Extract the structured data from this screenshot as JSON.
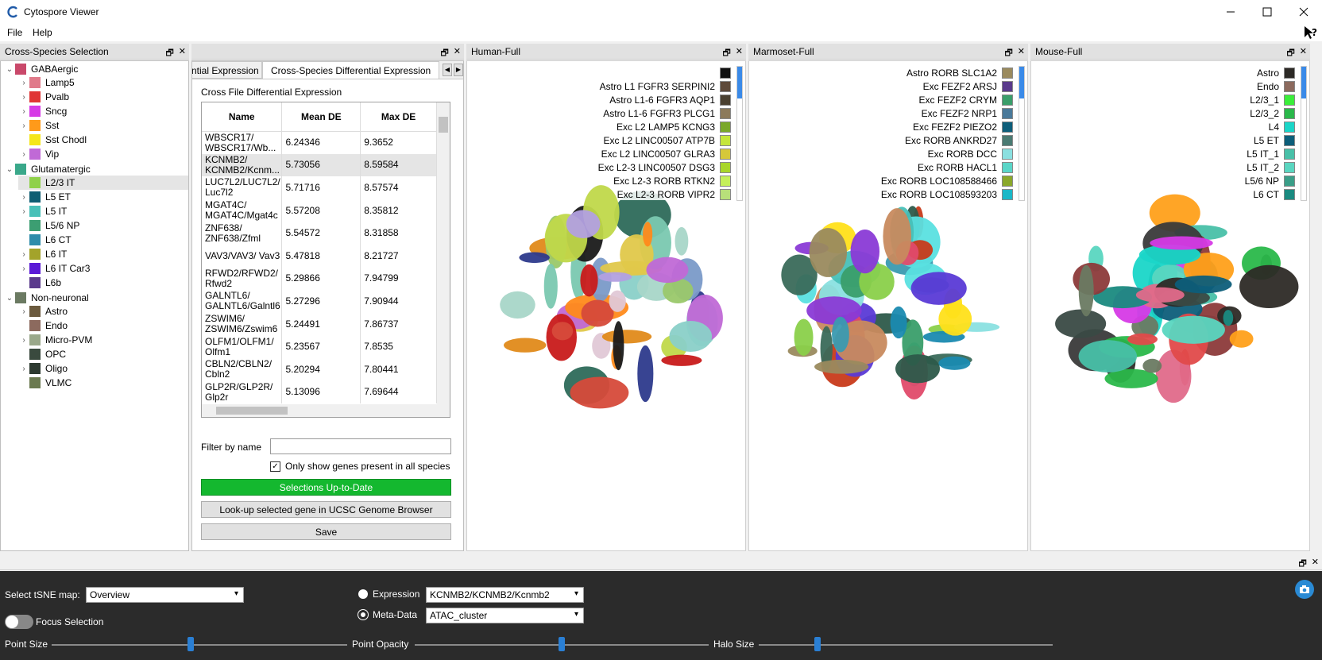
{
  "window": {
    "title": "Cytospore Viewer"
  },
  "menu": [
    "File",
    "Help"
  ],
  "left_panel": {
    "title": "Cross-Species Selection",
    "groups": [
      {
        "label": "GABAergic",
        "color": "#c9486a",
        "expanded": true,
        "items": [
          {
            "label": "Lamp5",
            "color": "#e07a8a",
            "arrow": true
          },
          {
            "label": "Pvalb",
            "color": "#e03535",
            "arrow": true
          },
          {
            "label": "Sncg",
            "color": "#d63ae6",
            "arrow": true
          },
          {
            "label": "Sst",
            "color": "#ff9a1a",
            "arrow": true
          },
          {
            "label": "Sst Chodl",
            "color": "#f5e61a",
            "arrow": false
          },
          {
            "label": "Vip",
            "color": "#c069d6",
            "arrow": true
          }
        ]
      },
      {
        "label": "Glutamatergic",
        "color": "#3aa88a",
        "expanded": true,
        "items": [
          {
            "label": "L2/3 IT",
            "color": "#8fd14a",
            "arrow": false,
            "selected": true
          },
          {
            "label": "L5 ET",
            "color": "#0d5e73",
            "arrow": true
          },
          {
            "label": "L5 IT",
            "color": "#48c0b8",
            "arrow": true
          },
          {
            "label": "L5/6 NP",
            "color": "#3c9e72",
            "arrow": false
          },
          {
            "label": "L6 CT",
            "color": "#2d8caa",
            "arrow": false
          },
          {
            "label": "L6 IT",
            "color": "#a3a32a",
            "arrow": true
          },
          {
            "label": "L6 IT Car3",
            "color": "#5a1ad6",
            "arrow": true
          },
          {
            "label": "L6b",
            "color": "#5a3a8c",
            "arrow": false
          }
        ]
      },
      {
        "label": "Non-neuronal",
        "color": "#6b7a62",
        "expanded": true,
        "items": [
          {
            "label": "Astro",
            "color": "#6b5a3e",
            "arrow": true
          },
          {
            "label": "Endo",
            "color": "#8c6a5e",
            "arrow": false
          },
          {
            "label": "Micro-PVM",
            "color": "#9aa88a",
            "arrow": true
          },
          {
            "label": "OPC",
            "color": "#3a4a3e",
            "arrow": false
          },
          {
            "label": "Oligo",
            "color": "#2d3a30",
            "arrow": true
          },
          {
            "label": "VLMC",
            "color": "#6b7a50",
            "arrow": false
          }
        ]
      }
    ]
  },
  "de_panel": {
    "tabs": [
      "ntial Expression",
      "Cross-Species Differential Expression"
    ],
    "section_label": "Cross File Differential Expression",
    "columns": [
      "Name",
      "Mean DE",
      "Max DE"
    ],
    "rows": [
      {
        "name": "WBSCR17/ WBSCR17/Wb...",
        "mean": "6.24346",
        "max": "9.3652"
      },
      {
        "name": "KCNMB2/ KCNMB2/Kcnm...",
        "mean": "5.73056",
        "max": "8.59584",
        "selected": true
      },
      {
        "name": "LUC7L2/LUC7L2/ Luc7l2",
        "mean": "5.71716",
        "max": "8.57574"
      },
      {
        "name": "MGAT4C/ MGAT4C/Mgat4c",
        "mean": "5.57208",
        "max": "8.35812"
      },
      {
        "name": "ZNF638/ ZNF638/Zfml",
        "mean": "5.54572",
        "max": "8.31858"
      },
      {
        "name": "VAV3/VAV3/ Vav3",
        "mean": "5.47818",
        "max": "8.21727"
      },
      {
        "name": "RFWD2/RFWD2/ Rfwd2",
        "mean": "5.29866",
        "max": "7.94799"
      },
      {
        "name": "GALNTL6/ GALNTL6/Galntl6",
        "mean": "5.27296",
        "max": "7.90944"
      },
      {
        "name": "ZSWIM6/ ZSWIM6/Zswim6",
        "mean": "5.24491",
        "max": "7.86737"
      },
      {
        "name": "OLFM1/OLFM1/ Olfm1",
        "mean": "5.23567",
        "max": "7.8535"
      },
      {
        "name": "CBLN2/CBLN2/ Cbln2",
        "mean": "5.20294",
        "max": "7.80441"
      },
      {
        "name": "GLP2R/GLP2R/ Glp2r",
        "mean": "5.13096",
        "max": "7.69644"
      }
    ],
    "filter_label": "Filter by name",
    "filter_value": "",
    "only_show_label": "Only show genes present in all species",
    "only_show_checked": true,
    "status_button": "Selections Up-to-Date",
    "lookup_button": "Look-up selected gene in UCSC Genome Browser",
    "save_button": "Save"
  },
  "views": [
    {
      "title": "Human-Full",
      "legend": [
        {
          "label": "",
          "color": "#111111"
        },
        {
          "label": "Astro L1 FGFR3 SERPINI2",
          "color": "#5e4a3a"
        },
        {
          "label": "Astro L1-6 FGFR3 AQP1",
          "color": "#4a4030"
        },
        {
          "label": "Astro L1-6 FGFR3 PLCG1",
          "color": "#8c7a5a"
        },
        {
          "label": "Exc L2 LAMP5 KCNG3",
          "color": "#7aa82a"
        },
        {
          "label": "Exc L2 LINC00507 ATP7B",
          "color": "#c5e63a"
        },
        {
          "label": "Exc L2 LINC00507 GLRA3",
          "color": "#d6c83a"
        },
        {
          "label": "Exc L2-3 LINC00507 DSG3",
          "color": "#a8d62a"
        },
        {
          "label": "Exc L2-3 RORB RTKN2",
          "color": "#c5f05a"
        },
        {
          "label": "Exc L2-3 RORB VIPR2",
          "color": "#b8e07a"
        }
      ]
    },
    {
      "title": "Marmoset-Full",
      "legend": [
        {
          "label": "Astro RORB SLC1A2",
          "color": "#9a8a5e"
        },
        {
          "label": "Exc FEZF2 ARSJ",
          "color": "#5a3a8c"
        },
        {
          "label": "Exc FEZF2 CRYM",
          "color": "#3a9e6a"
        },
        {
          "label": "Exc FEZF2 NRP1",
          "color": "#4a7a9a"
        },
        {
          "label": "Exc FEZF2 PIEZO2",
          "color": "#0d5e7a"
        },
        {
          "label": "Exc RORB ANKRD27",
          "color": "#4a7a72"
        },
        {
          "label": "Exc RORB DCC",
          "color": "#8ae0e0"
        },
        {
          "label": "Exc RORB HACL1",
          "color": "#5ad6c8"
        },
        {
          "label": "Exc RORB LOC108588466",
          "color": "#8aa82a"
        },
        {
          "label": "Exc RORB LOC108593203",
          "color": "#1ab8c8"
        }
      ]
    },
    {
      "title": "Mouse-Full",
      "legend": [
        {
          "label": "Astro",
          "color": "#2d2a26"
        },
        {
          "label": "Endo",
          "color": "#8c6a5e"
        },
        {
          "label": "L2/3_1",
          "color": "#3aee3a"
        },
        {
          "label": "L2/3_2",
          "color": "#2ab84a"
        },
        {
          "label": "L4",
          "color": "#1ad6c8"
        },
        {
          "label": "L5 ET",
          "color": "#0d5e7a"
        },
        {
          "label": "L5 IT_1",
          "color": "#48c0a8"
        },
        {
          "label": "L5 IT_2",
          "color": "#5ad6c0"
        },
        {
          "label": "L5/6 NP",
          "color": "#3a9e88"
        },
        {
          "label": "L6 CT",
          "color": "#1a8a80"
        }
      ]
    }
  ],
  "settings": {
    "tsne_label": "Select tSNE map:",
    "tsne_value": "Overview",
    "focus_label": "Focus Selection",
    "expression_label": "Expression",
    "expression_value": "KCNMB2/KCNMB2/Kcnmb2",
    "metadata_label": "Meta-Data",
    "metadata_value": "ATAC_cluster",
    "point_size_label": "Point Size",
    "point_opacity_label": "Point Opacity",
    "halo_size_label": "Halo Size",
    "point_size": 0.47,
    "point_opacity": 0.5,
    "halo_size": 0.2
  }
}
